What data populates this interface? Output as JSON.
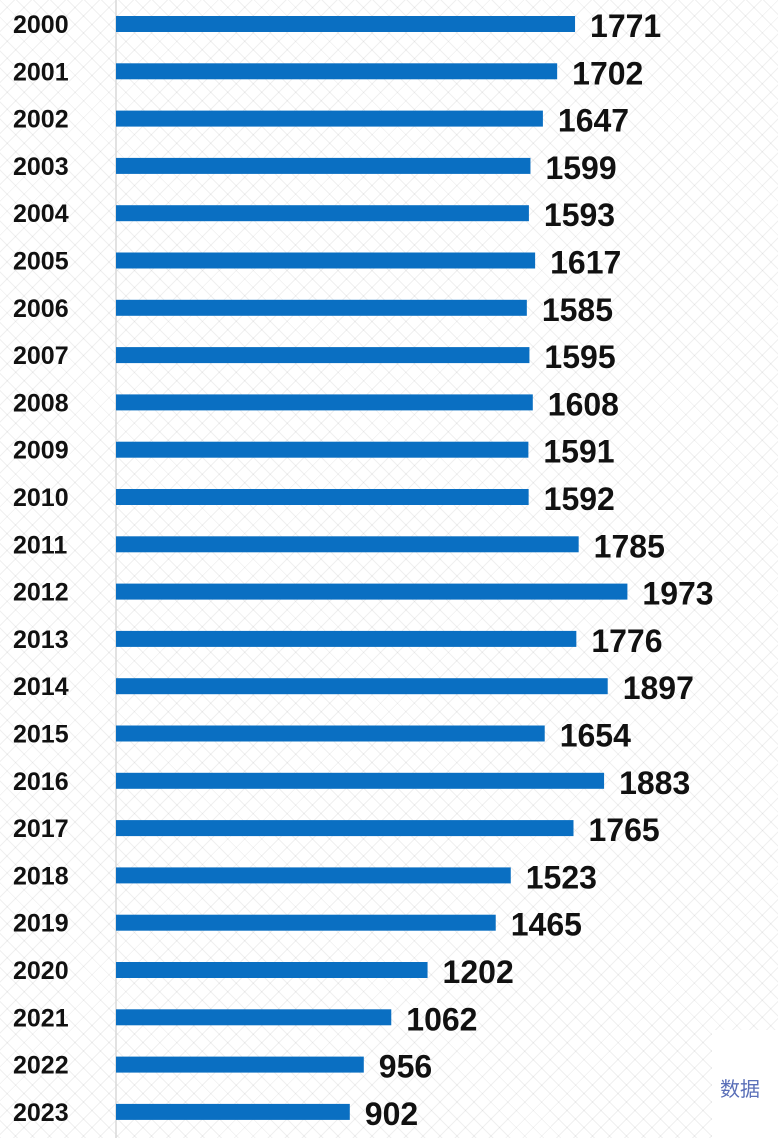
{
  "chart_data": {
    "type": "bar",
    "orientation": "horizontal",
    "categories": [
      "2000",
      "2001",
      "2002",
      "2003",
      "2004",
      "2005",
      "2006",
      "2007",
      "2008",
      "2009",
      "2010",
      "2011",
      "2012",
      "2013",
      "2014",
      "2015",
      "2016",
      "2017",
      "2018",
      "2019",
      "2020",
      "2021",
      "2022",
      "2023"
    ],
    "values": [
      1771,
      1702,
      1647,
      1599,
      1593,
      1617,
      1585,
      1595,
      1608,
      1591,
      1592,
      1785,
      1973,
      1776,
      1897,
      1654,
      1883,
      1765,
      1523,
      1465,
      1202,
      1062,
      956,
      902
    ],
    "title": "",
    "xlabel": "",
    "ylabel": "",
    "xlim": [
      0,
      2000
    ],
    "grid": false,
    "data_labels": true,
    "bar_color": "#0a6fc2"
  },
  "watermark": "数据"
}
